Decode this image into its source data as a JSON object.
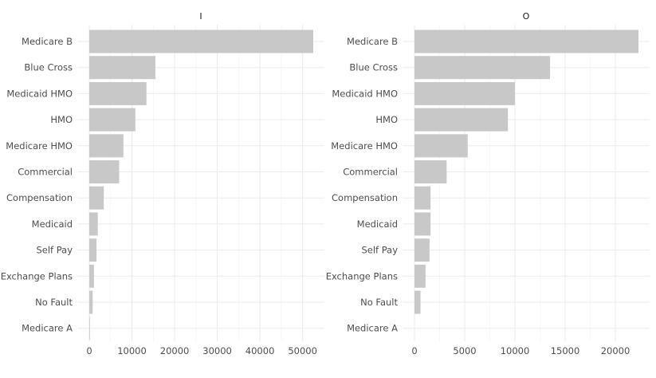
{
  "chart_data": {
    "type": "bar",
    "orientation": "horizontal",
    "bar_color": "#c8c8c8",
    "grid": true,
    "facets": [
      {
        "title": "I",
        "categories": [
          "Medicare B",
          "Blue Cross",
          "Medicaid HMO",
          "HMO",
          "Medicare HMO",
          "Commercial",
          "Compensation",
          "Medicaid",
          "Self Pay",
          "Exchange Plans",
          "No Fault",
          "Medicare A"
        ],
        "values": [
          52500,
          15500,
          13400,
          10800,
          8000,
          7000,
          3400,
          2000,
          1700,
          1100,
          800,
          150
        ],
        "xlim": [
          0,
          52500
        ],
        "ticks": [
          0,
          10000,
          20000,
          30000,
          40000,
          50000
        ]
      },
      {
        "title": "O",
        "categories": [
          "Medicare B",
          "Blue Cross",
          "Medicaid HMO",
          "HMO",
          "Medicare HMO",
          "Commercial",
          "Compensation",
          "Medicaid",
          "Self Pay",
          "Exchange Plans",
          "No Fault",
          "Medicare A"
        ],
        "values": [
          22300,
          13500,
          10000,
          9300,
          5300,
          3200,
          1600,
          1600,
          1500,
          1100,
          600,
          0
        ],
        "xlim": [
          0,
          22300
        ],
        "ticks": [
          0,
          5000,
          10000,
          15000,
          20000
        ]
      }
    ]
  }
}
